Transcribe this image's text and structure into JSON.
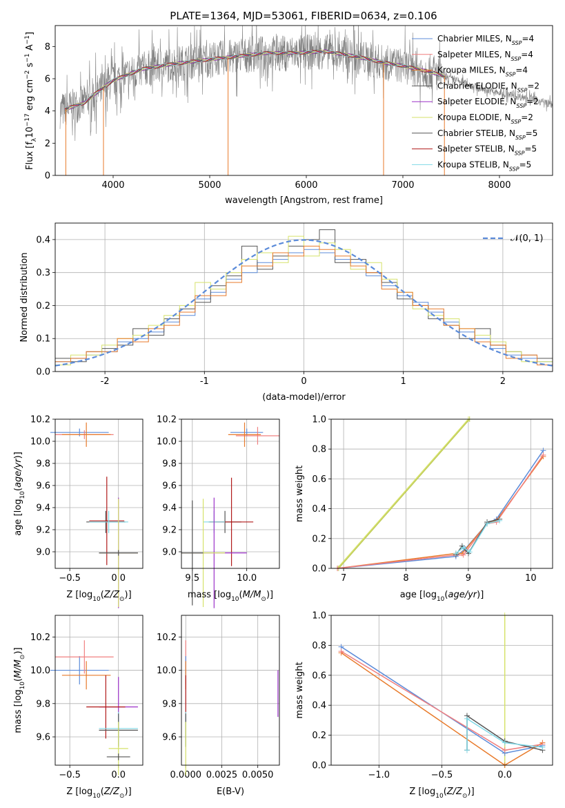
{
  "figure_title": "PLATE=1364, MJD=53061, FIBERID=0634, z=0.106",
  "models": [
    {
      "name": "Chabrier MILES",
      "color": "#5b8bd9"
    },
    {
      "name": "Salpeter MILES",
      "color": "#f07f7f"
    },
    {
      "name": "Kroupa MILES",
      "color": "#e87a2a"
    },
    {
      "name": "Chabrier ELODIE",
      "color": "#555555"
    },
    {
      "name": "Salpeter ELODIE",
      "color": "#9b30c8"
    },
    {
      "name": "Kroupa ELODIE",
      "color": "#d6e26a"
    },
    {
      "name": "Chabrier STELIB",
      "color": "#555555"
    },
    {
      "name": "Salpeter STELIB",
      "color": "#b01818"
    },
    {
      "name": "Kroupa STELIB",
      "color": "#7fd8e6"
    }
  ],
  "chart_data": [
    {
      "id": "spectrum",
      "type": "line",
      "xlabel": "wavelength [Angstrom, rest frame]",
      "ylabel": "Flux [f_λ 10^-17 erg cm^-2 s^-1 A^-1]",
      "xlim": [
        3400,
        8550
      ],
      "ylim": [
        0,
        9.3
      ],
      "xticks": [
        4000,
        5000,
        6000,
        7000,
        8000
      ],
      "yticks": [
        0,
        2,
        4,
        6,
        8
      ],
      "grid": false,
      "legend_position": "right",
      "legend": [
        {
          "label": "Chabrier MILES, N",
          "sub": "SSP",
          "suffix": "=4",
          "color": "#5b8bd9"
        },
        {
          "label": "Salpeter MILES, N",
          "sub": "SSP",
          "suffix": "=4",
          "color": "#f07f7f"
        },
        {
          "label": "Kroupa MILES, N",
          "sub": "SSP",
          "suffix": "=4",
          "color": "#e87a2a"
        },
        {
          "label": "Chabrier ELODIE, N",
          "sub": "SSP",
          "suffix": "=2",
          "color": "#555555"
        },
        {
          "label": "Salpeter ELODIE, N",
          "sub": "SSP",
          "suffix": "=2",
          "color": "#9b30c8"
        },
        {
          "label": "Kroupa ELODIE, N",
          "sub": "SSP",
          "suffix": "=2",
          "color": "#d6e26a"
        },
        {
          "label": "Chabrier STELIB, N",
          "sub": "SSP",
          "suffix": "=5",
          "color": "#555555"
        },
        {
          "label": "Salpeter STELIB, N",
          "sub": "SSP",
          "suffix": "=5",
          "color": "#b01818"
        },
        {
          "label": "Kroupa STELIB, N",
          "sub": "SSP",
          "suffix": "=5",
          "color": "#7fd8e6"
        }
      ],
      "continuum": {
        "x": [
          3450,
          3700,
          3800,
          4000,
          4300,
          4600,
          5000,
          5300,
          5600,
          5900,
          6200,
          6500,
          6800,
          7000,
          7300,
          7500,
          7800,
          8000,
          8300,
          8550
        ],
        "y": [
          4.0,
          4.5,
          5.0,
          5.9,
          6.6,
          6.9,
          7.2,
          7.4,
          7.6,
          7.6,
          7.7,
          7.4,
          7.0,
          6.8,
          6.4,
          6.0,
          5.4,
          5.1,
          4.8,
          4.4
        ]
      },
      "model_extent": {
        "x": [
          3500,
          7450
        ],
        "y_offset": 0.2
      },
      "spikes": [
        {
          "x": 3510,
          "y": 0
        },
        {
          "x": 3900,
          "y": 0
        },
        {
          "x": 5190,
          "y": 0
        },
        {
          "x": 6800,
          "y": 0
        },
        {
          "x": 7430,
          "y": 0
        }
      ]
    },
    {
      "id": "residuals",
      "type": "histogram",
      "xlabel": "(data-model)/error",
      "ylabel": "Normed distribution",
      "xlim": [
        -2.5,
        2.5
      ],
      "ylim": [
        0,
        0.45
      ],
      "xticks": [
        -2,
        -1,
        0,
        1,
        2
      ],
      "yticks": [
        0.0,
        0.1,
        0.2,
        0.3,
        0.4
      ],
      "grid": true,
      "legend_position": "top-right",
      "legend": "𝒩(0, 1)",
      "gaussian": {
        "mu": 0,
        "sigma": 1,
        "color": "#5b8bd9"
      },
      "bin_width": 0.1,
      "series": [
        {
          "name": "Chabrier MILES",
          "color": "#5b8bd9",
          "values": [
            0.03,
            0.04,
            0.05,
            0.06,
            0.09,
            0.1,
            0.12,
            0.15,
            0.17,
            0.22,
            0.24,
            0.28,
            0.3,
            0.33,
            0.34,
            0.36,
            0.37,
            0.36,
            0.34,
            0.33,
            0.29,
            0.26,
            0.23,
            0.21,
            0.18,
            0.15,
            0.12,
            0.1,
            0.07,
            0.05,
            0.04,
            0.03
          ]
        },
        {
          "name": "Chabrier ELODIE",
          "color": "#555555",
          "values": [
            0.04,
            0.03,
            0.06,
            0.07,
            0.08,
            0.13,
            0.11,
            0.16,
            0.19,
            0.21,
            0.26,
            0.29,
            0.38,
            0.31,
            0.35,
            0.38,
            0.4,
            0.43,
            0.33,
            0.34,
            0.3,
            0.27,
            0.22,
            0.2,
            0.16,
            0.14,
            0.1,
            0.13,
            0.08,
            0.06,
            0.05,
            0.04
          ]
        },
        {
          "name": "Kroupa ELODIE",
          "color": "#d6e26a",
          "values": [
            0.02,
            0.05,
            0.05,
            0.08,
            0.1,
            0.11,
            0.14,
            0.17,
            0.2,
            0.27,
            0.25,
            0.3,
            0.34,
            0.36,
            0.33,
            0.41,
            0.35,
            0.39,
            0.37,
            0.31,
            0.33,
            0.28,
            0.24,
            0.19,
            0.17,
            0.16,
            0.13,
            0.11,
            0.09,
            0.06,
            0.03,
            0.03
          ]
        },
        {
          "name": "Kroupa MILES",
          "color": "#e87a2a",
          "values": [
            0.03,
            0.04,
            0.06,
            0.06,
            0.1,
            0.09,
            0.13,
            0.14,
            0.18,
            0.23,
            0.23,
            0.27,
            0.32,
            0.32,
            0.36,
            0.35,
            0.38,
            0.37,
            0.35,
            0.32,
            0.3,
            0.25,
            0.24,
            0.2,
            0.19,
            0.14,
            0.13,
            0.09,
            0.08,
            0.04,
            0.05,
            0.02
          ]
        }
      ]
    },
    {
      "id": "age_vs_Z",
      "type": "errorbar",
      "xlabel": "Z [log10(Z/Z⊙)]",
      "ylabel": "age  [log10(age/yr)]",
      "xlim": [
        -0.65,
        0.25
      ],
      "ylim": [
        8.85,
        10.2
      ],
      "xticks": [
        -0.5,
        0.0
      ],
      "yticks": [
        9.0,
        9.2,
        9.4,
        9.6,
        9.8,
        10.0,
        10.2
      ],
      "grid": true,
      "points": [
        {
          "x": -0.4,
          "y": 10.08,
          "xerr": 0.3,
          "yerr": 0.07,
          "color": "#5b8bd9"
        },
        {
          "x": -0.35,
          "y": 10.06,
          "xerr": 0.3,
          "yerr": 0.08,
          "color": "#f07f7f"
        },
        {
          "x": -0.33,
          "y": 10.06,
          "xerr": 0.25,
          "yerr": 0.22,
          "color": "#e87a2a"
        },
        {
          "x": -0.13,
          "y": 9.27,
          "xerr": 0.2,
          "yerr": 0.2,
          "color": "#555555"
        },
        {
          "x": -0.12,
          "y": 9.28,
          "xerr": 0.18,
          "yerr": 0.8,
          "color": "#b01818"
        },
        {
          "x": -0.1,
          "y": 9.27,
          "xerr": 0.2,
          "yerr": 0.2,
          "color": "#7fd8e6"
        },
        {
          "x": 0.0,
          "y": 8.99,
          "xerr": 0.2,
          "yerr": 1.0,
          "color": "#9b30c8"
        },
        {
          "x": 0.0,
          "y": 8.99,
          "xerr": 0.2,
          "yerr": 0.98,
          "color": "#d6e26a"
        },
        {
          "x": 0.0,
          "y": 8.99,
          "xerr": 0.2,
          "yerr": 0.05,
          "color": "#555555"
        }
      ]
    },
    {
      "id": "age_vs_mass",
      "type": "errorbar",
      "xlabel": "mass [log10(M/M⊙)]",
      "ylabel": "",
      "xlim": [
        9.4,
        10.3
      ],
      "ylim": [
        8.85,
        10.2
      ],
      "xticks": [
        9.5,
        10.0
      ],
      "yticks": [
        9.0,
        9.2,
        9.4,
        9.6,
        9.8,
        10.0,
        10.2
      ],
      "grid": true,
      "points": [
        {
          "x": 10.0,
          "y": 10.08,
          "xerr": 0.15,
          "yerr": 0.07,
          "color": "#5b8bd9"
        },
        {
          "x": 10.1,
          "y": 10.05,
          "xerr": 0.2,
          "yerr": 0.16,
          "color": "#f07f7f"
        },
        {
          "x": 9.98,
          "y": 10.06,
          "xerr": 0.15,
          "yerr": 0.22,
          "color": "#e87a2a"
        },
        {
          "x": 9.8,
          "y": 9.27,
          "xerr": 0.15,
          "yerr": 0.2,
          "color": "#555555"
        },
        {
          "x": 9.86,
          "y": 9.27,
          "xerr": 0.2,
          "yerr": 0.8,
          "color": "#b01818"
        },
        {
          "x": 9.7,
          "y": 9.27,
          "xerr": 0.1,
          "yerr": 0.2,
          "color": "#7fd8e6"
        },
        {
          "x": 9.7,
          "y": 8.99,
          "xerr": 0.3,
          "yerr": 1.0,
          "color": "#9b30c8"
        },
        {
          "x": 9.6,
          "y": 8.99,
          "xerr": 0.2,
          "yerr": 0.98,
          "color": "#d6e26a"
        },
        {
          "x": 9.5,
          "y": 8.99,
          "xerr": 0.1,
          "yerr": 0.95,
          "color": "#555555"
        }
      ]
    },
    {
      "id": "weight_vs_age",
      "type": "line",
      "xlabel": "age  [log10(age/yr)]",
      "ylabel": "mass weight",
      "xlim": [
        6.8,
        10.35
      ],
      "ylim": [
        0,
        1.0
      ],
      "xticks": [
        7,
        8,
        9,
        10
      ],
      "yticks": [
        0.0,
        0.2,
        0.4,
        0.6,
        0.8,
        1.0
      ],
      "grid": true,
      "series": [
        {
          "name": "Kroupa ELODIE",
          "color": "#d6e26a",
          "x": [
            6.9,
            9.0
          ],
          "y": [
            0.0,
            1.0
          ]
        },
        {
          "name": "Salpeter ELODIE",
          "color": "#c0cc5a",
          "x": [
            6.92,
            9.02
          ],
          "y": [
            0.0,
            1.0
          ]
        },
        {
          "name": "Chabrier MILES",
          "color": "#5b8bd9",
          "x": [
            6.9,
            8.8,
            8.95,
            9.3,
            9.45,
            10.2
          ],
          "y": [
            0.0,
            0.08,
            0.13,
            0.3,
            0.33,
            0.79
          ]
        },
        {
          "name": "Kroupa MILES",
          "color": "#e87a2a",
          "x": [
            6.9,
            8.8,
            8.9,
            9.3,
            9.45,
            10.2
          ],
          "y": [
            0.0,
            0.1,
            0.1,
            0.3,
            0.32,
            0.75
          ]
        },
        {
          "name": "Salpeter MILES",
          "color": "#f07f7f",
          "x": [
            6.9,
            8.8,
            8.92,
            9.3,
            9.45,
            10.2
          ],
          "y": [
            0.0,
            0.09,
            0.09,
            0.3,
            0.31,
            0.76
          ]
        },
        {
          "name": "Chabrier STELIB",
          "color": "#555555",
          "x": [
            8.8,
            8.9,
            9.0,
            9.3,
            9.5
          ],
          "y": [
            0.09,
            0.15,
            0.1,
            0.31,
            0.33
          ]
        },
        {
          "name": "Kroupa STELIB",
          "color": "#7fd8e6",
          "x": [
            8.8,
            8.92,
            9.02,
            9.3,
            9.5
          ],
          "y": [
            0.1,
            0.14,
            0.11,
            0.3,
            0.32
          ]
        }
      ]
    },
    {
      "id": "mass_vs_Z",
      "type": "errorbar",
      "xlabel": "Z [log10(Z/Z⊙)]",
      "ylabel": "mass [log10(M/M⊙)]",
      "xlim": [
        -0.65,
        0.25
      ],
      "ylim": [
        9.43,
        10.33
      ],
      "xticks": [
        -0.5,
        0.0
      ],
      "yticks": [
        9.6,
        9.8,
        10.0,
        10.2
      ],
      "grid": true,
      "points": [
        {
          "x": -0.4,
          "y": 10.0,
          "xerr": 0.3,
          "yerr": 0.17,
          "color": "#5b8bd9"
        },
        {
          "x": -0.35,
          "y": 10.08,
          "xerr": 0.3,
          "yerr": 0.2,
          "color": "#f07f7f"
        },
        {
          "x": -0.33,
          "y": 9.97,
          "xerr": 0.25,
          "yerr": 0.17,
          "color": "#e87a2a"
        },
        {
          "x": 0.0,
          "y": 9.78,
          "xerr": 0.2,
          "yerr": 0.36,
          "color": "#9b30c8"
        },
        {
          "x": -0.13,
          "y": 9.78,
          "xerr": 0.2,
          "yerr": 0.38,
          "color": "#b01818"
        },
        {
          "x": 0.0,
          "y": 9.65,
          "xerr": 0.2,
          "yerr": 0.2,
          "color": "#7fd8e6"
        },
        {
          "x": 0.0,
          "y": 9.64,
          "xerr": 0.2,
          "yerr": 0.2,
          "color": "#555555"
        },
        {
          "x": 0.0,
          "y": 9.53,
          "xerr": 0.1,
          "yerr": 0.32,
          "color": "#d6e26a"
        },
        {
          "x": 0.0,
          "y": 9.48,
          "xerr": 0.12,
          "yerr": 0.04,
          "color": "#555555"
        }
      ]
    },
    {
      "id": "mass_vs_EBV",
      "type": "errorbar",
      "xlabel": "E(B-V)",
      "ylabel": "",
      "xlim": [
        -0.0003,
        0.0065
      ],
      "ylim": [
        9.43,
        10.33
      ],
      "xticks": [
        0.0,
        0.0025,
        0.005
      ],
      "xticklabels": [
        "0.0000",
        "0.0025",
        "0.0050"
      ],
      "yticks": [
        9.6,
        9.8,
        10.0,
        10.2
      ],
      "grid": true,
      "points": [
        {
          "x": 0.0,
          "y": 10.08,
          "xerr": 0.0,
          "yerr": 0.2,
          "color": "#f07f7f"
        },
        {
          "x": 0.0,
          "y": 10.0,
          "xerr": 0.0,
          "yerr": 0.17,
          "color": "#5b8bd9"
        },
        {
          "x": 0.0,
          "y": 9.97,
          "xerr": 0.0,
          "yerr": 0.17,
          "color": "#e87a2a"
        },
        {
          "x": 0.0,
          "y": 9.78,
          "xerr": 0.0,
          "yerr": 0.38,
          "color": "#b01818"
        },
        {
          "x": 0.0,
          "y": 9.65,
          "xerr": 0.0,
          "yerr": 0.2,
          "color": "#7fd8e6"
        },
        {
          "x": 0.0,
          "y": 9.64,
          "xerr": 0.0,
          "yerr": 0.2,
          "color": "#555555"
        },
        {
          "x": 0.0,
          "y": 9.53,
          "xerr": 0.0,
          "yerr": 0.32,
          "color": "#d6e26a"
        },
        {
          "x": 0.0064,
          "y": 9.86,
          "xerr": 0.0,
          "yerr": 0.28,
          "color": "#9b30c8"
        }
      ]
    },
    {
      "id": "weight_vs_Z",
      "type": "line",
      "xlabel": "Z [log10(Z/Z⊙)]",
      "ylabel": "mass weight",
      "xlim": [
        -1.38,
        0.38
      ],
      "ylim": [
        0,
        1.0
      ],
      "xticks": [
        -1.0,
        -0.5,
        0.0
      ],
      "yticks": [
        0.0,
        0.2,
        0.4,
        0.6,
        0.8,
        1.0
      ],
      "grid": true,
      "series": [
        {
          "name": "Kroupa ELODIE",
          "color": "#d6e26a",
          "x": [
            0.0,
            0.0
          ],
          "y": [
            0.0,
            1.0
          ]
        },
        {
          "name": "Chabrier MILES",
          "color": "#5b8bd9",
          "x": [
            -1.3,
            0.0,
            0.3
          ],
          "y": [
            0.79,
            0.08,
            0.13
          ]
        },
        {
          "name": "Kroupa MILES",
          "color": "#e87a2a",
          "x": [
            -1.3,
            0.0,
            0.3
          ],
          "y": [
            0.75,
            0.0,
            0.15
          ]
        },
        {
          "name": "Salpeter MILES",
          "color": "#f07f7f",
          "x": [
            -1.3,
            0.0,
            0.3
          ],
          "y": [
            0.76,
            0.1,
            0.14
          ]
        },
        {
          "name": "Chabrier STELIB",
          "color": "#555555",
          "x": [
            -0.3,
            -0.3,
            0.0,
            0.3
          ],
          "y": [
            0.1,
            0.33,
            0.16,
            0.1
          ]
        },
        {
          "name": "Kroupa STELIB",
          "color": "#7fd8e6",
          "x": [
            -0.3,
            -0.3,
            0.0,
            0.3
          ],
          "y": [
            0.1,
            0.31,
            0.15,
            0.12
          ]
        }
      ]
    }
  ]
}
